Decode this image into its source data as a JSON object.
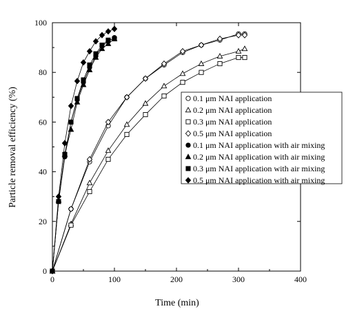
{
  "chart_data": {
    "type": "scatter",
    "xlabel": "Time (min)",
    "ylabel": "Particle removal efficiency (%)",
    "xlim": [
      0,
      400
    ],
    "ylim": [
      0,
      100
    ],
    "xticks": [
      "0",
      "100",
      "200",
      "300",
      "400"
    ],
    "yticks": [
      "0",
      "20",
      "40",
      "60",
      "80",
      "100"
    ],
    "grid": false,
    "legend_position": "inside-right",
    "series": [
      {
        "name": "0.1 μm NAI application",
        "marker": "circle-open",
        "x": [
          0,
          30,
          60,
          90,
          120,
          150,
          180,
          210,
          240,
          270,
          300,
          310
        ],
        "y": [
          0,
          25,
          44,
          58.5,
          70,
          77.5,
          83,
          88,
          91,
          93,
          95.5,
          95.5
        ]
      },
      {
        "name": "0.2 μm NAI application",
        "marker": "triangle-open",
        "x": [
          0,
          30,
          60,
          90,
          120,
          150,
          180,
          210,
          240,
          270,
          300,
          310
        ],
        "y": [
          0,
          19,
          35.5,
          48.5,
          59,
          67.5,
          74.5,
          79.5,
          83.5,
          86.5,
          88.5,
          89.5
        ]
      },
      {
        "name": "0.3 μm NAI application",
        "marker": "square-open",
        "x": [
          0,
          30,
          60,
          90,
          120,
          150,
          180,
          210,
          240,
          270,
          300,
          310
        ],
        "y": [
          0,
          18.5,
          32,
          45,
          55,
          63,
          70.5,
          76,
          80,
          83.5,
          86,
          86
        ]
      },
      {
        "name": "0.5 μm NAI application",
        "marker": "diamond-open",
        "x": [
          0,
          30,
          60,
          90,
          120,
          150,
          180,
          210,
          240,
          270,
          300,
          310
        ],
        "y": [
          0,
          25,
          45,
          60,
          70,
          77.5,
          83.5,
          88.5,
          91,
          93.5,
          95,
          95
        ]
      },
      {
        "name": "0.1 μm NAI application with air mixing",
        "marker": "circle-filled",
        "x": [
          0,
          10,
          20,
          30,
          40,
          50,
          60,
          70,
          80,
          90,
          100
        ],
        "y": [
          0,
          28,
          46,
          60,
          69,
          76,
          82,
          86.5,
          90.5,
          92.5,
          94
        ]
      },
      {
        "name": "0.2 μm NAI application with air mixing",
        "marker": "triangle-filled",
        "x": [
          0,
          10,
          20,
          30,
          40,
          50,
          60,
          70,
          80,
          90,
          100
        ],
        "y": [
          0,
          28.5,
          47,
          57,
          68,
          75,
          81,
          86,
          89.5,
          91.5,
          93.5
        ]
      },
      {
        "name": "0.3 μm NAI application with air mixing",
        "marker": "square-filled",
        "x": [
          0,
          10,
          20,
          30,
          40,
          50,
          60,
          70,
          80,
          90,
          100
        ],
        "y": [
          0,
          28,
          47,
          60,
          69.5,
          77,
          83,
          87.5,
          91,
          93,
          93.5
        ]
      },
      {
        "name": "0.5 μm NAI application with air mixing",
        "marker": "diamond-filled",
        "x": [
          0,
          10,
          20,
          30,
          40,
          50,
          60,
          70,
          80,
          90,
          100
        ],
        "y": [
          0,
          30,
          51.5,
          66.5,
          76.5,
          84,
          88.5,
          92.5,
          95,
          96.5,
          97.5
        ]
      }
    ]
  }
}
